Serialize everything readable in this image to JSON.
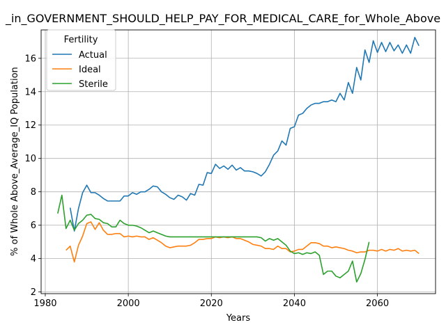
{
  "chart_data": {
    "type": "line",
    "title": "_in_GOVERNMENT_SHOULD_HELP_PAY_FOR_MEDICAL_CARE_for_Whole_Above",
    "xlabel": "Years",
    "ylabel": "% of Whole Above_Average_IQ Population",
    "xlim": [
      1979,
      2074
    ],
    "ylim": [
      1.9,
      17.7
    ],
    "xticks": [
      1980,
      2000,
      2020,
      2040,
      2060
    ],
    "yticks": [
      2,
      4,
      6,
      8,
      10,
      12,
      14,
      16
    ],
    "grid": true,
    "legend": {
      "title": "Fertility",
      "placement": "top-left"
    },
    "series": [
      {
        "name": "Actual",
        "color": "#1f77b4",
        "x": [
          1986,
          1987,
          1988,
          1989,
          1990,
          1991,
          1992,
          1993,
          1994,
          1995,
          1996,
          1997,
          1998,
          1999,
          2000,
          2001,
          2002,
          2003,
          2004,
          2005,
          2006,
          2007,
          2008,
          2009,
          2010,
          2011,
          2012,
          2013,
          2014,
          2015,
          2016,
          2017,
          2018,
          2019,
          2020,
          2021,
          2022,
          2023,
          2024,
          2025,
          2026,
          2027,
          2028,
          2029,
          2030,
          2031,
          2032,
          2033,
          2034,
          2035,
          2036,
          2037,
          2038,
          2039,
          2040,
          2041,
          2042,
          2043,
          2044,
          2045,
          2046,
          2047,
          2048,
          2049,
          2050,
          2051,
          2052,
          2053,
          2054,
          2055,
          2056,
          2057,
          2058,
          2059,
          2060,
          2061,
          2062,
          2063,
          2064,
          2065,
          2066,
          2067,
          2068,
          2069,
          2070
        ],
        "values": [
          7.05,
          5.65,
          7.0,
          7.95,
          8.4,
          7.95,
          7.95,
          7.8,
          7.6,
          7.45,
          7.45,
          7.45,
          7.45,
          7.75,
          7.75,
          7.95,
          7.85,
          8.0,
          8.0,
          8.15,
          8.35,
          8.3,
          8.0,
          7.85,
          7.65,
          7.55,
          7.8,
          7.7,
          7.5,
          7.9,
          7.8,
          8.45,
          8.4,
          9.15,
          9.1,
          9.65,
          9.4,
          9.55,
          9.35,
          9.6,
          9.3,
          9.45,
          9.25,
          9.25,
          9.2,
          9.1,
          8.95,
          9.2,
          9.65,
          10.2,
          10.45,
          11.05,
          10.8,
          11.8,
          11.9,
          12.6,
          12.7,
          13.0,
          13.2,
          13.3,
          13.3,
          13.4,
          13.4,
          13.5,
          13.4,
          13.9,
          13.5,
          14.55,
          13.9,
          15.45,
          14.7,
          16.5,
          15.75,
          17.05,
          16.35,
          16.95,
          16.4,
          16.95,
          16.45,
          16.8,
          16.3,
          16.8,
          16.3,
          17.25,
          16.75
        ]
      },
      {
        "name": "Ideal",
        "color": "#ff7f0e",
        "x": [
          1985,
          1986,
          1987,
          1988,
          1989,
          1990,
          1991,
          1992,
          1993,
          1994,
          1995,
          1996,
          1997,
          1998,
          1999,
          2000,
          2001,
          2002,
          2003,
          2004,
          2005,
          2006,
          2007,
          2008,
          2009,
          2010,
          2011,
          2012,
          2013,
          2014,
          2015,
          2016,
          2017,
          2018,
          2019,
          2020,
          2021,
          2022,
          2023,
          2024,
          2025,
          2026,
          2027,
          2028,
          2029,
          2030,
          2031,
          2032,
          2033,
          2034,
          2035,
          2036,
          2037,
          2038,
          2039,
          2040,
          2041,
          2042,
          2043,
          2044,
          2045,
          2046,
          2047,
          2048,
          2049,
          2050,
          2051,
          2052,
          2053,
          2054,
          2055,
          2056,
          2057,
          2058,
          2059,
          2060,
          2061,
          2062,
          2063,
          2064,
          2065,
          2066,
          2067,
          2068,
          2069,
          2070
        ],
        "values": [
          4.5,
          4.75,
          3.8,
          4.8,
          5.35,
          6.1,
          6.2,
          5.75,
          6.15,
          5.7,
          5.45,
          5.45,
          5.5,
          5.5,
          5.3,
          5.35,
          5.3,
          5.35,
          5.3,
          5.3,
          5.15,
          5.25,
          5.1,
          4.95,
          4.75,
          4.65,
          4.7,
          4.75,
          4.75,
          4.75,
          4.8,
          4.95,
          5.15,
          5.15,
          5.2,
          5.2,
          5.3,
          5.25,
          5.3,
          5.25,
          5.3,
          5.2,
          5.2,
          5.1,
          5.0,
          4.85,
          4.8,
          4.75,
          4.6,
          4.6,
          4.55,
          4.75,
          4.6,
          4.6,
          4.4,
          4.45,
          4.55,
          4.55,
          4.75,
          4.95,
          4.95,
          4.9,
          4.75,
          4.75,
          4.65,
          4.7,
          4.65,
          4.6,
          4.5,
          4.45,
          4.35,
          4.4,
          4.4,
          4.5,
          4.5,
          4.45,
          4.55,
          4.45,
          4.55,
          4.5,
          4.6,
          4.45,
          4.5,
          4.45,
          4.5,
          4.3
        ]
      },
      {
        "name": "Sterile",
        "color": "#2ca02c",
        "x": [
          1983,
          1984,
          1985,
          1986,
          1987,
          1988,
          1989,
          1990,
          1991,
          1992,
          1993,
          1994,
          1995,
          1996,
          1997,
          1998,
          1999,
          2000,
          2001,
          2002,
          2003,
          2004,
          2005,
          2006,
          2007,
          2008,
          2009,
          2010,
          2011,
          2012,
          2013,
          2014,
          2015,
          2016,
          2017,
          2018,
          2019,
          2020,
          2021,
          2022,
          2023,
          2024,
          2025,
          2026,
          2027,
          2028,
          2029,
          2030,
          2031,
          2032,
          2033,
          2034,
          2035,
          2036,
          2037,
          2038,
          2039,
          2040,
          2041,
          2042,
          2043,
          2044,
          2045,
          2046,
          2047,
          2048,
          2049,
          2050,
          2051,
          2052,
          2053,
          2054,
          2055,
          2056,
          2057,
          2058
        ],
        "values": [
          6.7,
          7.8,
          5.8,
          6.3,
          5.7,
          6.1,
          6.3,
          6.6,
          6.65,
          6.4,
          6.35,
          6.15,
          6.1,
          5.9,
          5.9,
          6.3,
          6.1,
          6.0,
          6.0,
          5.95,
          5.85,
          5.7,
          5.55,
          5.65,
          5.55,
          5.45,
          5.35,
          5.3,
          5.3,
          5.3,
          5.3,
          5.3,
          5.3,
          5.3,
          5.3,
          5.3,
          5.3,
          5.3,
          5.3,
          5.3,
          5.3,
          5.3,
          5.3,
          5.3,
          5.3,
          5.3,
          5.3,
          5.3,
          5.3,
          5.25,
          5.05,
          5.2,
          5.1,
          5.2,
          5.0,
          4.8,
          4.45,
          4.3,
          4.35,
          4.25,
          4.35,
          4.3,
          4.4,
          4.2,
          3.05,
          3.25,
          3.25,
          2.95,
          2.85,
          3.05,
          3.25,
          3.85,
          2.6,
          3.1,
          3.95,
          5.0
        ]
      }
    ]
  }
}
